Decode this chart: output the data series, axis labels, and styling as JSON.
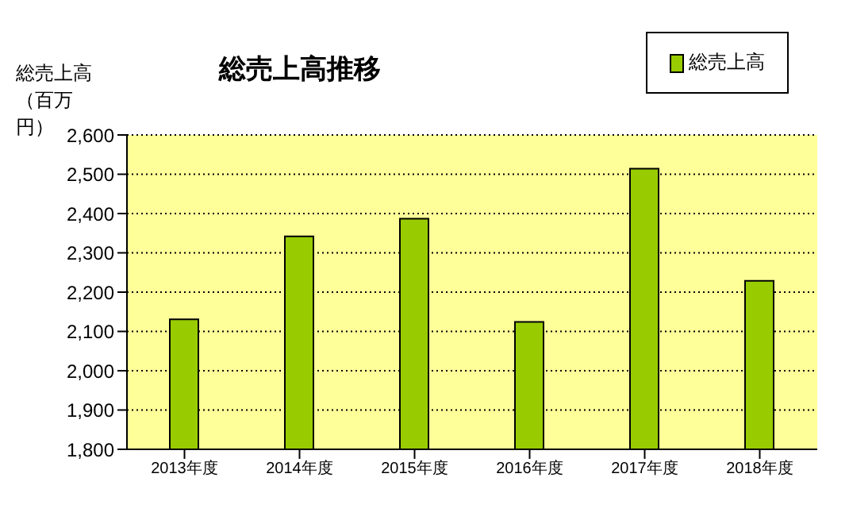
{
  "chart_data": {
    "type": "bar",
    "title": "総売上高推移",
    "ylabel": "総売上高（百万円）",
    "categories": [
      "2013年度",
      "2014年度",
      "2015年度",
      "2016年度",
      "2017年度",
      "2018年度"
    ],
    "series": [
      {
        "name": "総売上高",
        "color": "#99cc00",
        "values": [
          2131,
          2342,
          2387,
          2124,
          2514,
          2229
        ]
      }
    ],
    "ylim": [
      1800,
      2600
    ],
    "yticks": [
      {
        "value": 1800,
        "label": "1,800"
      },
      {
        "value": 1900,
        "label": "1,900"
      },
      {
        "value": 2000,
        "label": "2,000"
      },
      {
        "value": 2100,
        "label": "2,100"
      },
      {
        "value": 2200,
        "label": "2,200"
      },
      {
        "value": 2300,
        "label": "2,300"
      },
      {
        "value": 2400,
        "label": "2,400"
      },
      {
        "value": 2500,
        "label": "2,500"
      },
      {
        "value": 2600,
        "label": "2,600"
      }
    ],
    "grid": "y",
    "legend": "top right"
  }
}
